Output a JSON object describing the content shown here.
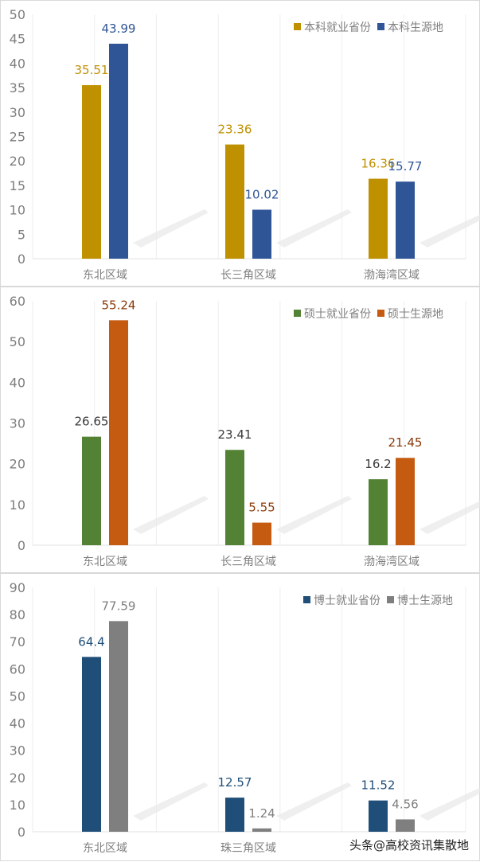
{
  "chart_data": [
    {
      "type": "bar",
      "categories": [
        "东北区域",
        "长三角区域",
        "渤海湾区域"
      ],
      "ylim": [
        0,
        50
      ],
      "yticks": [
        0,
        5,
        10,
        15,
        20,
        25,
        30,
        35,
        40,
        45,
        50
      ],
      "grid": "vertical",
      "legend": "top-right",
      "series": [
        {
          "name": "本科就业省份",
          "values": [
            35.51,
            23.36,
            16.36
          ],
          "color": "#BF9000",
          "label_color": "#BF9000"
        },
        {
          "name": "本科生源地",
          "values": [
            43.99,
            10.02,
            15.77
          ],
          "color": "#2F5597",
          "label_color": "#2F5597"
        }
      ]
    },
    {
      "type": "bar",
      "categories": [
        "东北区域",
        "长三角区域",
        "渤海湾区域"
      ],
      "ylim": [
        0,
        60
      ],
      "yticks": [
        0,
        10,
        20,
        30,
        40,
        50,
        60
      ],
      "grid": "vertical",
      "legend": "top-right",
      "series": [
        {
          "name": "硕士就业省份",
          "values": [
            26.65,
            23.41,
            16.2
          ],
          "color": "#548235",
          "label_color": "#3a3a3a"
        },
        {
          "name": "硕士生源地",
          "values": [
            55.24,
            5.55,
            21.45
          ],
          "color": "#C55A11",
          "label_color": "#8a3a0a"
        }
      ]
    },
    {
      "type": "bar",
      "categories": [
        "东北区域",
        "珠三角区域",
        ""
      ],
      "ylim": [
        0,
        90
      ],
      "yticks": [
        0,
        10,
        20,
        30,
        40,
        50,
        60,
        70,
        80,
        90
      ],
      "grid": "vertical",
      "legend": "top-right",
      "series": [
        {
          "name": "博士就业省份",
          "values": [
            64.4,
            12.57,
            11.52
          ],
          "color": "#1F4E79",
          "label_color": "#1F4E79"
        },
        {
          "name": "博士生源地",
          "values": [
            77.59,
            1.24,
            4.56
          ],
          "color": "#7F7F7F",
          "label_color": "#7F7F7F"
        }
      ]
    }
  ],
  "watermark": "头条@高校资讯集散地"
}
